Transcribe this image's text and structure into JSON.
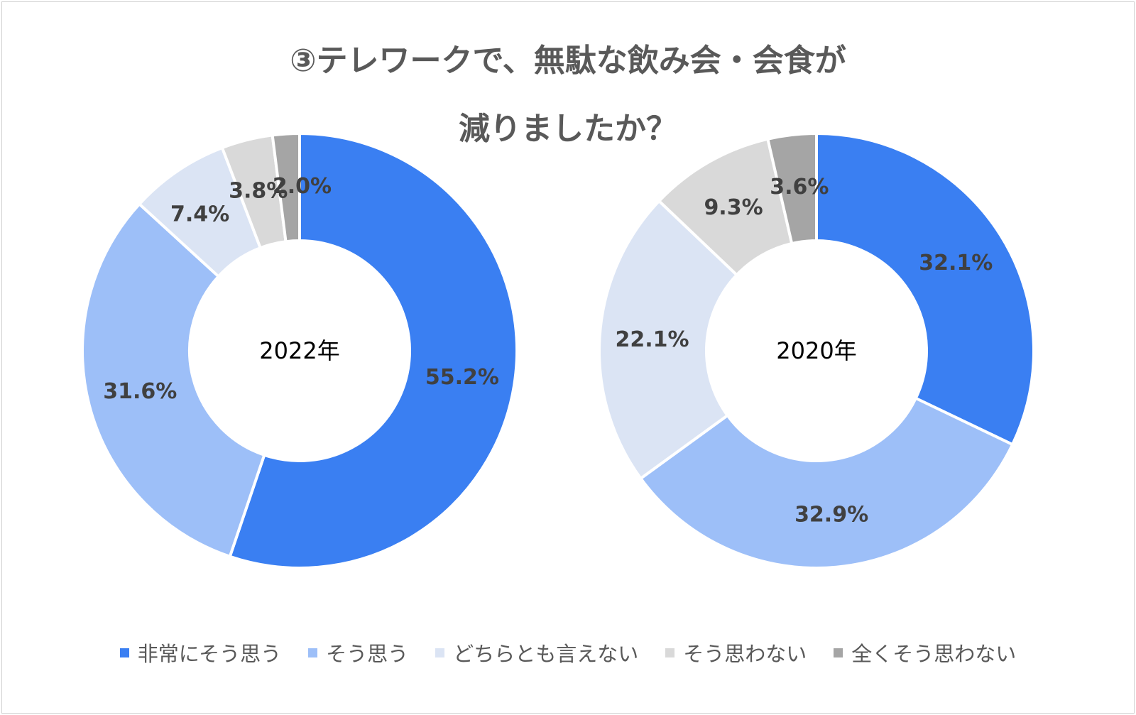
{
  "title": {
    "line1": "③テレワークで、無駄な飲み会・会食が",
    "line2": "減りましたか？"
  },
  "colors": {
    "series": [
      "#3a7ff2",
      "#9dbff8",
      "#dbe4f4",
      "#d9d9d9",
      "#a5a5a5"
    ],
    "label": "#404040"
  },
  "chart_data": [
    {
      "type": "pie",
      "donut": true,
      "center_label": "2022年",
      "categories": [
        "非常にそう思う",
        "そう思う",
        "どちらとも言えない",
        "そう思わない",
        "全くそう思わない"
      ],
      "values": [
        55.2,
        31.6,
        7.4,
        3.8,
        2.0
      ],
      "labels": [
        "55.2%",
        "31.6%",
        "7.4%",
        "3.8%",
        "2.0%"
      ]
    },
    {
      "type": "pie",
      "donut": true,
      "center_label": "2020年",
      "categories": [
        "非常にそう思う",
        "そう思う",
        "どちらとも言えない",
        "そう思わない",
        "全くそう思わない"
      ],
      "values": [
        32.1,
        32.9,
        22.1,
        9.3,
        3.6
      ],
      "labels": [
        "32.1%",
        "32.9%",
        "22.1%",
        "9.3%",
        "3.6%"
      ]
    }
  ],
  "legend": {
    "items": [
      "非常にそう思う",
      "そう思う",
      "どちらとも言えない",
      "そう思わない",
      "全くそう思わない"
    ]
  }
}
